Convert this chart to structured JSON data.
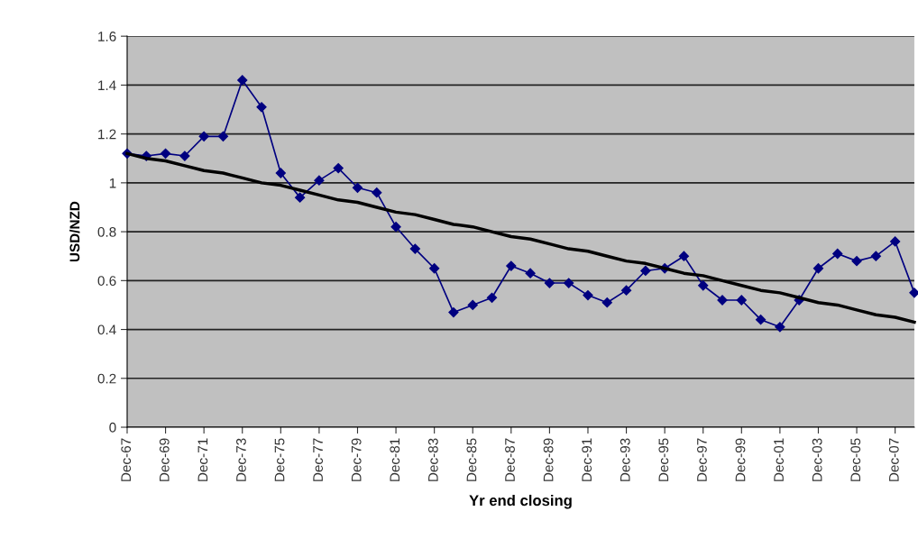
{
  "chart_data": {
    "type": "line",
    "xlabel": "Yr end closing",
    "ylabel": "USD/NZD",
    "categories": [
      "Dec-67",
      null,
      "Dec-69",
      null,
      "Dec-71",
      null,
      "Dec-73",
      null,
      "Dec-75",
      null,
      "Dec-77",
      null,
      "Dec-79",
      null,
      "Dec-81",
      null,
      "Dec-83",
      null,
      "Dec-85",
      null,
      "Dec-87",
      null,
      "Dec-89",
      null,
      "Dec-91",
      null,
      "Dec-93",
      null,
      "Dec-95",
      null,
      "Dec-97",
      null,
      "Dec-99",
      null,
      "Dec-01",
      null,
      "Dec-03",
      null,
      "Dec-05",
      null,
      "Dec-07",
      null
    ],
    "series": [
      {
        "color": "#000080",
        "marker": "diamond",
        "values": [
          1.12,
          1.11,
          1.12,
          1.11,
          1.19,
          1.19,
          1.42,
          1.31,
          1.04,
          0.94,
          1.01,
          1.06,
          0.98,
          0.96,
          0.82,
          0.73,
          0.65,
          0.47,
          0.5,
          0.53,
          0.66,
          0.63,
          0.59,
          0.59,
          0.54,
          0.51,
          0.56,
          0.64,
          0.65,
          0.7,
          0.58,
          0.52,
          0.52,
          0.44,
          0.41,
          0.52,
          0.65,
          0.71,
          0.68,
          0.7,
          0.76,
          0.55
        ]
      },
      {
        "color": "#000000",
        "marker": "none",
        "values": [
          1.12,
          1.1,
          1.09,
          1.07,
          1.05,
          1.04,
          1.02,
          1.0,
          0.99,
          0.97,
          0.95,
          0.93,
          0.92,
          0.9,
          0.88,
          0.87,
          0.85,
          0.83,
          0.82,
          0.8,
          0.78,
          0.77,
          0.75,
          0.73,
          0.72,
          0.7,
          0.68,
          0.67,
          0.65,
          0.63,
          0.62,
          0.6,
          0.58,
          0.56,
          0.55,
          0.53,
          0.51,
          0.5,
          0.48,
          0.46,
          0.45,
          0.43
        ]
      }
    ],
    "ylim": [
      0,
      1.6
    ],
    "yticks": [
      0,
      0.2,
      0.4,
      0.6,
      0.8,
      1,
      1.2,
      1.4,
      1.6
    ],
    "grid": "y",
    "legend": false
  }
}
